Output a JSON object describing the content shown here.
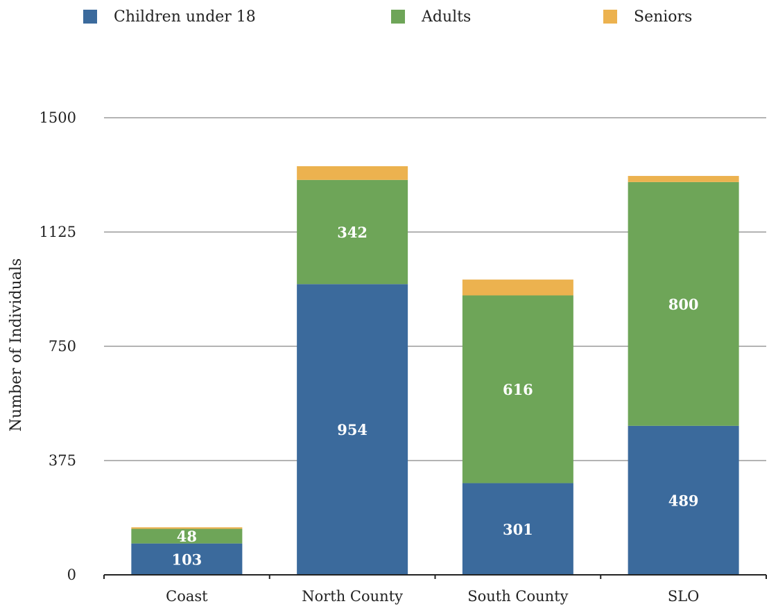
{
  "chart_data": {
    "type": "bar",
    "stacked": true,
    "title": "",
    "xlabel": "",
    "ylabel": "Number of Individuals",
    "categories": [
      "Coast",
      "North County",
      "South County",
      "SLO"
    ],
    "ylim": [
      0,
      1500
    ],
    "yticks": [
      0,
      375,
      750,
      1125,
      1500
    ],
    "ytick_labels": [
      "0",
      "375",
      "750",
      "1125",
      "1500"
    ],
    "grid": "horizontal",
    "legend_position": "top",
    "series": [
      {
        "name": "Children under 18",
        "color": "#3b6a9c",
        "values": [
          103,
          954,
          301,
          489
        ],
        "labels": [
          "103",
          "954",
          "301",
          "489"
        ]
      },
      {
        "name": "Adults",
        "color": "#6ea558",
        "values": [
          48,
          342,
          616,
          800
        ],
        "labels": [
          "48",
          "342",
          "616",
          "800"
        ]
      },
      {
        "name": "Seniors",
        "color": "#ecb24f",
        "values": [
          5,
          45,
          52,
          20
        ],
        "labels": [
          "",
          "",
          "",
          ""
        ]
      }
    ]
  }
}
